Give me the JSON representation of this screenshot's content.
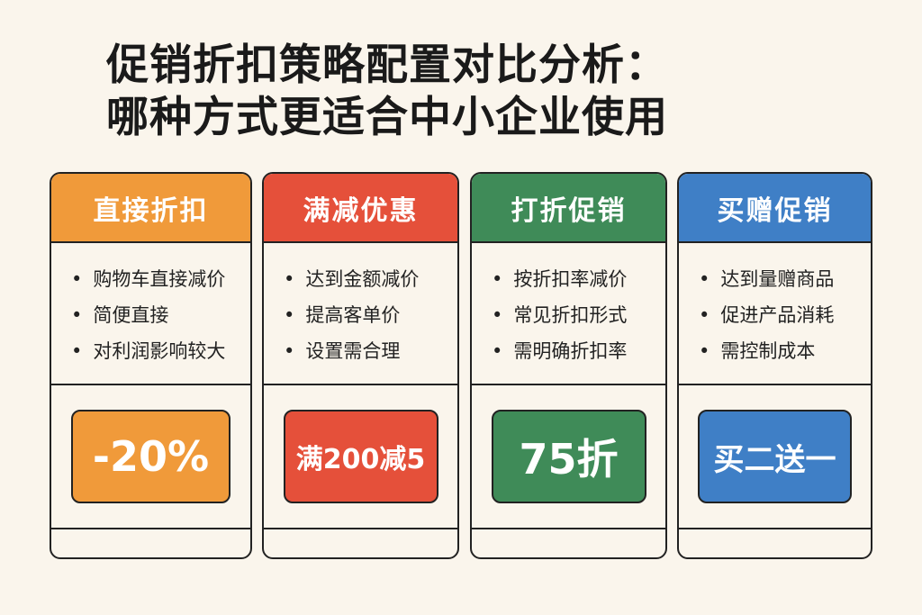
{
  "title": {
    "line1": "促销折扣策略配置对比分析：",
    "line2": "哪种方式更适合中小企业使用"
  },
  "colors": {
    "background": "#faf5ec",
    "orange": "#f09a3a",
    "red": "#e5503a",
    "green": "#3f8b58",
    "blue": "#3f7fc6"
  },
  "cards": [
    {
      "title": "直接折扣",
      "items": [
        "购物车直接减价",
        "简便直接",
        "对利润影响较大"
      ],
      "badge": "-20%",
      "color": "#f09a3a"
    },
    {
      "title": "满减优惠",
      "items": [
        "达到金额减价",
        "提高客单价",
        "设置需合理"
      ],
      "badge": "满200减5",
      "color": "#e5503a"
    },
    {
      "title": "打折促销",
      "items": [
        "按折扣率减价",
        "常见折扣形式",
        "需明确折扣率"
      ],
      "badge": "75折",
      "color": "#3f8b58"
    },
    {
      "title": "买赠促销",
      "items": [
        "达到量赠商品",
        "促进产品消耗",
        "需控制成本"
      ],
      "badge": "买二送一",
      "color": "#3f7fc6"
    }
  ]
}
